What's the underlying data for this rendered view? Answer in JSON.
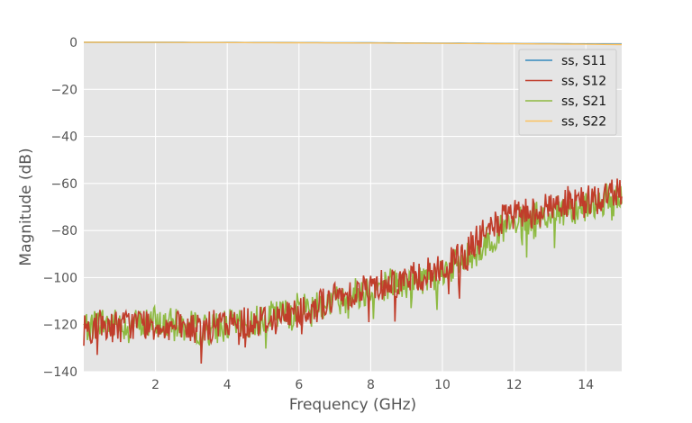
{
  "chart_data": {
    "type": "line",
    "title": "",
    "xlabel": "Frequency (GHz)",
    "ylabel": "Magnitude (dB)",
    "xlim": [
      0,
      15
    ],
    "ylim": [
      -140,
      0
    ],
    "xticks": [
      2,
      4,
      6,
      8,
      10,
      12,
      14
    ],
    "yticks": [
      0,
      -20,
      -40,
      -60,
      -80,
      -100,
      -120,
      -140
    ],
    "grid": true,
    "legend_position": "top-right",
    "series": [
      {
        "name": "ss, S11",
        "color": "#348ABD",
        "x": [
          0,
          2,
          4,
          6,
          8,
          10,
          12,
          14,
          15
        ],
        "values": [
          0,
          0,
          -0.05,
          -0.1,
          -0.2,
          -0.35,
          -0.5,
          -0.65,
          -0.75
        ]
      },
      {
        "name": "ss, S12",
        "color": "#C03D2B",
        "x": [
          0,
          0.5,
          1,
          1.5,
          2,
          2.5,
          3,
          3.5,
          4,
          4.5,
          5,
          5.5,
          6,
          6.5,
          7,
          7.5,
          8,
          8.5,
          9,
          9.5,
          10,
          10.5,
          11,
          11.5,
          12,
          12.5,
          13,
          13.5,
          14,
          14.5,
          15
        ],
        "values": [
          -122,
          -120,
          -121,
          -119,
          -120,
          -121,
          -122,
          -121,
          -120,
          -119,
          -118,
          -117,
          -114,
          -112,
          -109,
          -106,
          -104,
          -102,
          -101,
          -99,
          -96,
          -92,
          -84,
          -77,
          -74,
          -72,
          -70,
          -68,
          -67,
          -66,
          -62
        ]
      },
      {
        "name": "ss, S21",
        "color": "#8EBA42",
        "x": [
          0,
          0.5,
          1,
          1.5,
          2,
          2.5,
          3,
          3.5,
          4,
          4.5,
          5,
          5.5,
          6,
          6.5,
          7,
          7.5,
          8,
          8.5,
          9,
          9.5,
          10,
          10.5,
          11,
          11.5,
          12,
          12.5,
          13,
          13.5,
          14,
          14.5,
          15
        ],
        "values": [
          -121,
          -119,
          -120,
          -120,
          -119,
          -120,
          -121,
          -122,
          -120,
          -121,
          -117,
          -116,
          -113,
          -111,
          -110,
          -107,
          -105,
          -102,
          -103,
          -100,
          -97,
          -94,
          -88,
          -81,
          -78,
          -75,
          -73,
          -71,
          -69,
          -67,
          -67
        ]
      },
      {
        "name": "ss, S22",
        "color": "#FBC15E",
        "x": [
          0,
          2,
          4,
          6,
          8,
          10,
          12,
          14,
          15
        ],
        "values": [
          0,
          -0.05,
          -0.1,
          -0.2,
          -0.3,
          -0.45,
          -0.6,
          -0.8,
          -0.95
        ]
      }
    ]
  }
}
